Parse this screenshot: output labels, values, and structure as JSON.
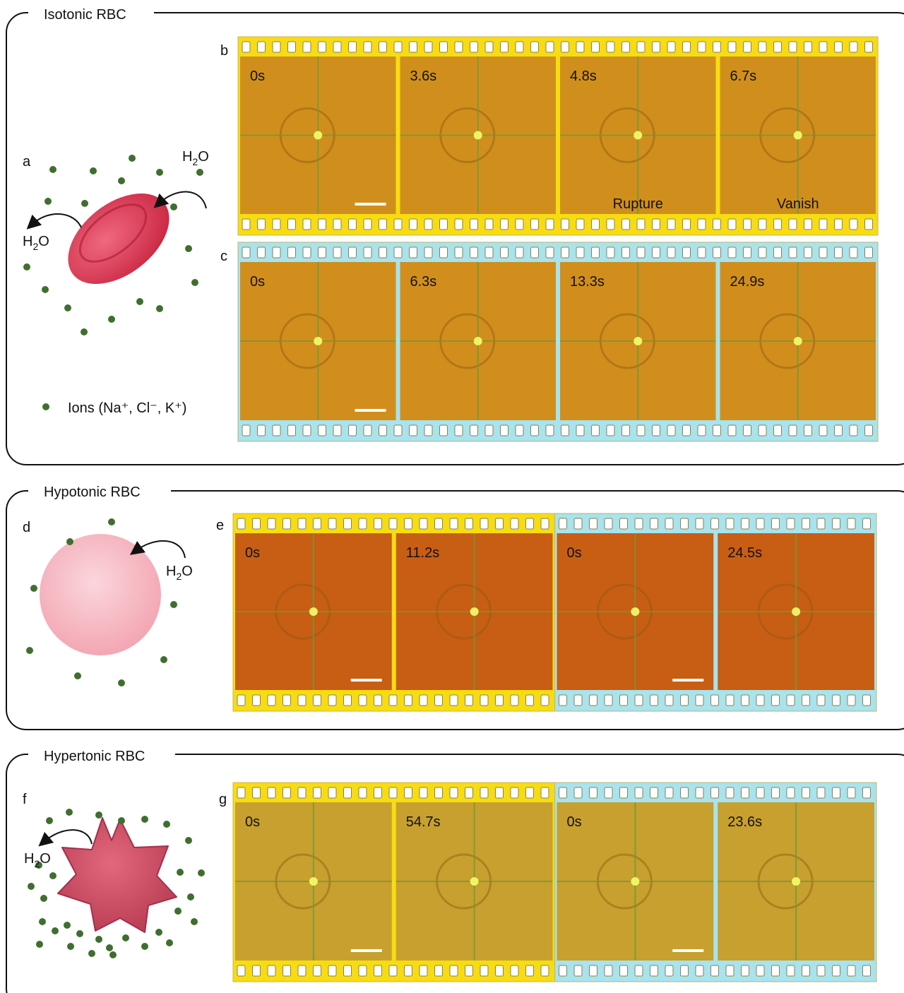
{
  "isotonic": {
    "title": "Isotonic RBC",
    "panel_a": {
      "letter": "a",
      "h2o_in": [
        "H",
        "2",
        "O"
      ],
      "h2o_out": [
        "H",
        "2",
        "O"
      ],
      "legend": "Ions (Na⁺, Cl⁻, K⁺)"
    },
    "panel_b": {
      "letter": "b",
      "groups": [
        {
          "color": "#f7dc12",
          "frames": [
            {
              "time": "0s"
            },
            {
              "time": "3.6s"
            },
            {
              "time": "4.8s",
              "note": "Rupture"
            },
            {
              "time": "6.7s",
              "note": "Vanish"
            }
          ]
        }
      ]
    },
    "panel_c": {
      "letter": "c",
      "groups": [
        {
          "color": "#a8e3ee",
          "frames": [
            {
              "time": "0s"
            },
            {
              "time": "6.3s"
            },
            {
              "time": "13.3s"
            },
            {
              "time": "24.9s"
            }
          ]
        }
      ]
    }
  },
  "hypotonic": {
    "title": "Hypotonic RBC",
    "panel_d": {
      "letter": "d",
      "h2o_in": [
        "H",
        "2",
        "O"
      ]
    },
    "panel_e": {
      "letter": "e",
      "groups": [
        {
          "color": "#f7dc12",
          "frames": [
            {
              "time": "0s"
            },
            {
              "time": "11.2s"
            }
          ]
        },
        {
          "color": "#a8e3ee",
          "frames": [
            {
              "time": "0s"
            },
            {
              "time": "24.5s"
            }
          ]
        }
      ]
    }
  },
  "hypertonic": {
    "title": "Hypertonic RBC",
    "panel_f": {
      "letter": "f",
      "h2o_out": [
        "H",
        "2",
        "O"
      ]
    },
    "panel_g": {
      "letter": "g",
      "groups": [
        {
          "color": "#f7dc12",
          "frames": [
            {
              "time": "0s"
            },
            {
              "time": "54.7s"
            }
          ]
        },
        {
          "color": "#a8e3ee",
          "frames": [
            {
              "time": "0s"
            },
            {
              "time": "23.6s"
            }
          ]
        }
      ]
    }
  }
}
